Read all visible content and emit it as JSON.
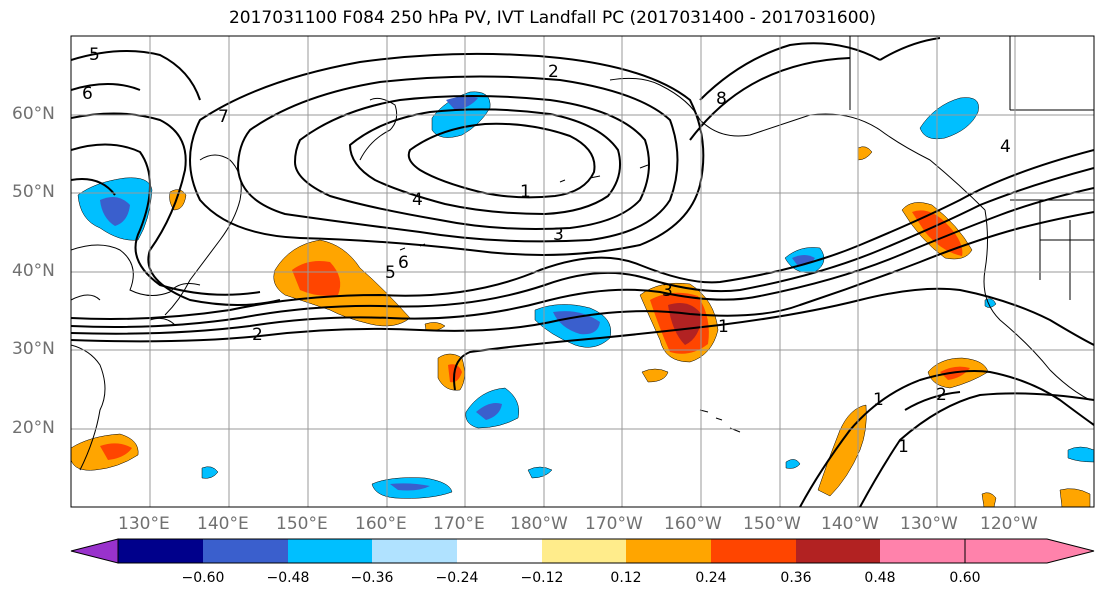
{
  "title": "2017031100 F084 250 hPa PV, IVT Landfall PC (2017031400 - 2017031600)",
  "lat_labels": [
    "60°N",
    "50°N",
    "40°N",
    "30°N",
    "20°N"
  ],
  "lon_labels": [
    "130°E",
    "140°E",
    "150°E",
    "160°E",
    "170°E",
    "180°W",
    "170°W",
    "160°W",
    "150°W",
    "140°W",
    "130°W",
    "120°W"
  ],
  "contour_labels": [
    "5",
    "6",
    "7",
    "2",
    "8",
    "1",
    "3",
    "4",
    "6",
    "5",
    "2",
    "3",
    "1",
    "4",
    "1",
    "2",
    "1"
  ],
  "colorbar": {
    "tick_labels": [
      "−0.60",
      "−0.48",
      "−0.36",
      "−0.24",
      "−0.12",
      "0.12",
      "0.24",
      "0.36",
      "0.48",
      "0.60"
    ],
    "colors": [
      "#9932CC",
      "#00008B",
      "#3A5FCD",
      "#00BFFF",
      "#B0E2FF",
      "#FFFFFF",
      "#FFEC8B",
      "#FFA500",
      "#FF4500",
      "#B22222",
      "#FF82AB"
    ]
  }
}
